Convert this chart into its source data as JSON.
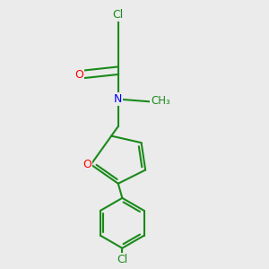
{
  "bg_color": "#ebebeb",
  "atom_colors": {
    "C": "#1a8a1a",
    "Cl": "#1a8a1a",
    "O": "#ff0000",
    "N": "#0000ff"
  },
  "bond_color": "#1a8a1a",
  "bond_width": 1.5,
  "figsize": [
    3.0,
    3.0
  ],
  "dpi": 100
}
